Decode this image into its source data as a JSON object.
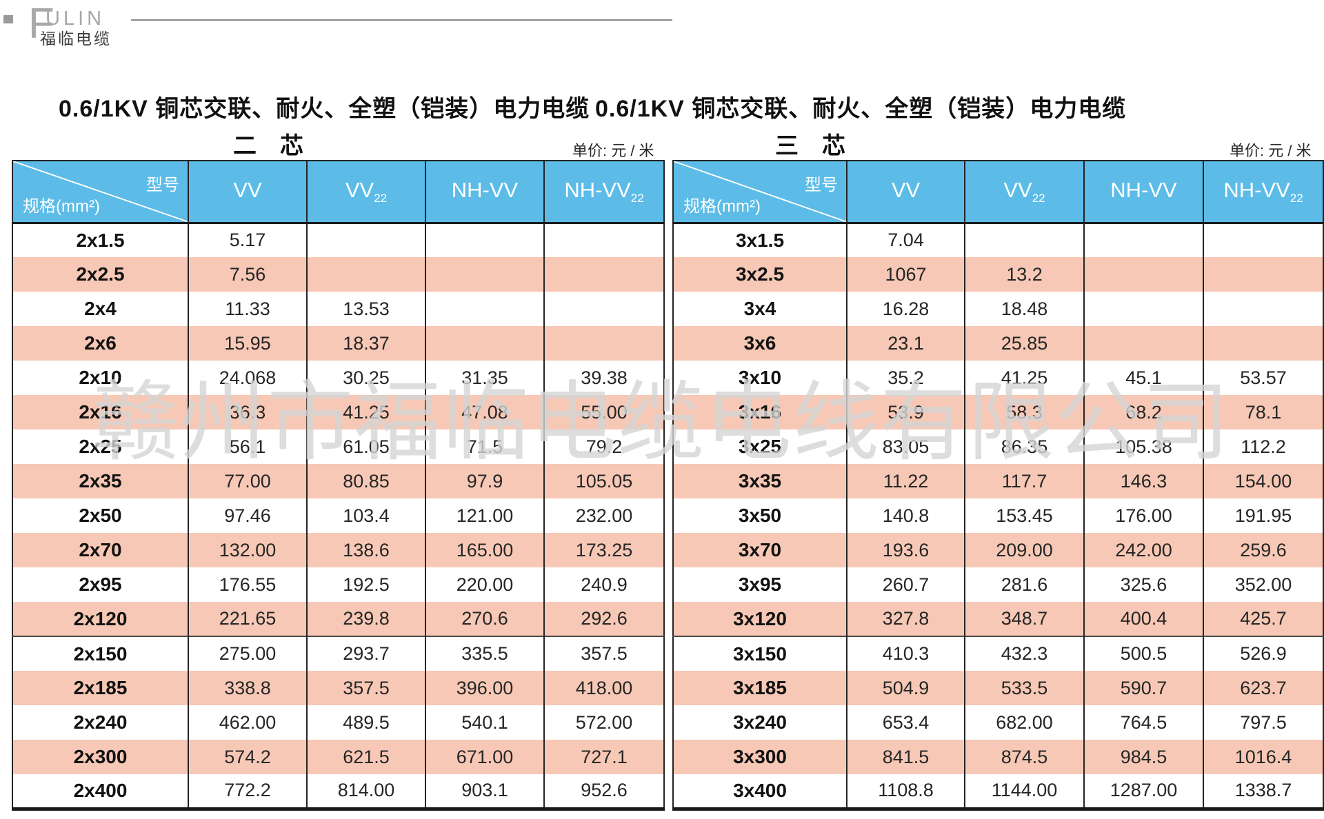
{
  "logo": {
    "brand_initial": "F",
    "brand_rest": "ULIN",
    "brand_cn": "福临电缆"
  },
  "watermark": {
    "text": "赣州市福临电缆电线有限公司"
  },
  "colors": {
    "header_blue": "#5CBCE7",
    "row_pink": "#F6C8B5",
    "grid_border": "#242424",
    "watermark_gray": "#D5D5D5"
  },
  "tables": [
    {
      "title": "0.6/1KV 铜芯交联、耐火、全塑（铠装）电力电缆",
      "subtitle": "二　芯",
      "unit_label": "单价: 元 / 米",
      "corner": {
        "model_label": "型号",
        "spec_label": "规格(mm²)"
      },
      "columns": [
        {
          "label": "VV",
          "sub": ""
        },
        {
          "label": "VV",
          "sub": "22"
        },
        {
          "label": "NH-VV",
          "sub": ""
        },
        {
          "label": "NH-VV",
          "sub": "22"
        }
      ],
      "rows": [
        {
          "spec": "2x1.5",
          "prices": [
            "5.17",
            "",
            "",
            ""
          ]
        },
        {
          "spec": "2x2.5",
          "prices": [
            "7.56",
            "",
            "",
            ""
          ]
        },
        {
          "spec": "2x4",
          "prices": [
            "11.33",
            "13.53",
            "",
            ""
          ]
        },
        {
          "spec": "2x6",
          "prices": [
            "15.95",
            "18.37",
            "",
            ""
          ]
        },
        {
          "spec": "2x10",
          "prices": [
            "24.068",
            "30.25",
            "31.35",
            "39.38"
          ]
        },
        {
          "spec": "2x16",
          "prices": [
            "36.3",
            "41.25",
            "47.08",
            "55.00"
          ]
        },
        {
          "spec": "2x25",
          "prices": [
            "56.1",
            "61.05",
            "71.5",
            "79.2"
          ]
        },
        {
          "spec": "2x35",
          "prices": [
            "77.00",
            "80.85",
            "97.9",
            "105.05"
          ]
        },
        {
          "spec": "2x50",
          "prices": [
            "97.46",
            "103.4",
            "121.00",
            "232.00"
          ]
        },
        {
          "spec": "2x70",
          "prices": [
            "132.00",
            "138.6",
            "165.00",
            "173.25"
          ]
        },
        {
          "spec": "2x95",
          "prices": [
            "176.55",
            "192.5",
            "220.00",
            "240.9"
          ]
        },
        {
          "spec": "2x120",
          "prices": [
            "221.65",
            "239.8",
            "270.6",
            "292.6"
          ]
        },
        {
          "spec": "2x150",
          "prices": [
            "275.00",
            "293.7",
            "335.5",
            "357.5"
          ]
        },
        {
          "spec": "2x185",
          "prices": [
            "338.8",
            "357.5",
            "396.00",
            "418.00"
          ]
        },
        {
          "spec": "2x240",
          "prices": [
            "462.00",
            "489.5",
            "540.1",
            "572.00"
          ]
        },
        {
          "spec": "2x300",
          "prices": [
            "574.2",
            "621.5",
            "671.00",
            "727.1"
          ]
        },
        {
          "spec": "2x400",
          "prices": [
            "772.2",
            "814.00",
            "903.1",
            "952.6"
          ]
        }
      ]
    },
    {
      "title": "0.6/1KV 铜芯交联、耐火、全塑（铠装）电力电缆",
      "subtitle": "三　芯",
      "unit_label": "单价: 元 / 米",
      "corner": {
        "model_label": "型号",
        "spec_label": "规格(mm²)"
      },
      "columns": [
        {
          "label": "VV",
          "sub": ""
        },
        {
          "label": "VV",
          "sub": "22"
        },
        {
          "label": "NH-VV",
          "sub": ""
        },
        {
          "label": "NH-VV",
          "sub": "22"
        }
      ],
      "rows": [
        {
          "spec": "3x1.5",
          "prices": [
            "7.04",
            "",
            "",
            ""
          ]
        },
        {
          "spec": "3x2.5",
          "prices": [
            "1067",
            "13.2",
            "",
            ""
          ]
        },
        {
          "spec": "3x4",
          "prices": [
            "16.28",
            "18.48",
            "",
            ""
          ]
        },
        {
          "spec": "3x6",
          "prices": [
            "23.1",
            "25.85",
            "",
            ""
          ]
        },
        {
          "spec": "3x10",
          "prices": [
            "35.2",
            "41.25",
            "45.1",
            "53.57"
          ]
        },
        {
          "spec": "3x16",
          "prices": [
            "53.9",
            "58.3",
            "68.2",
            "78.1"
          ]
        },
        {
          "spec": "3x25",
          "prices": [
            "83.05",
            "86.35",
            "105.38",
            "112.2"
          ]
        },
        {
          "spec": "3x35",
          "prices": [
            "11.22",
            "117.7",
            "146.3",
            "154.00"
          ]
        },
        {
          "spec": "3x50",
          "prices": [
            "140.8",
            "153.45",
            "176.00",
            "191.95"
          ]
        },
        {
          "spec": "3x70",
          "prices": [
            "193.6",
            "209.00",
            "242.00",
            "259.6"
          ]
        },
        {
          "spec": "3x95",
          "prices": [
            "260.7",
            "281.6",
            "325.6",
            "352.00"
          ]
        },
        {
          "spec": "3x120",
          "prices": [
            "327.8",
            "348.7",
            "400.4",
            "425.7"
          ]
        },
        {
          "spec": "3x150",
          "prices": [
            "410.3",
            "432.3",
            "500.5",
            "526.9"
          ]
        },
        {
          "spec": "3x185",
          "prices": [
            "504.9",
            "533.5",
            "590.7",
            "623.7"
          ]
        },
        {
          "spec": "3x240",
          "prices": [
            "653.4",
            "682.00",
            "764.5",
            "797.5"
          ]
        },
        {
          "spec": "3x300",
          "prices": [
            "841.5",
            "874.5",
            "984.5",
            "1016.4"
          ]
        },
        {
          "spec": "3x400",
          "prices": [
            "1108.8",
            "1144.00",
            "1287.00",
            "1338.7"
          ]
        }
      ]
    }
  ]
}
